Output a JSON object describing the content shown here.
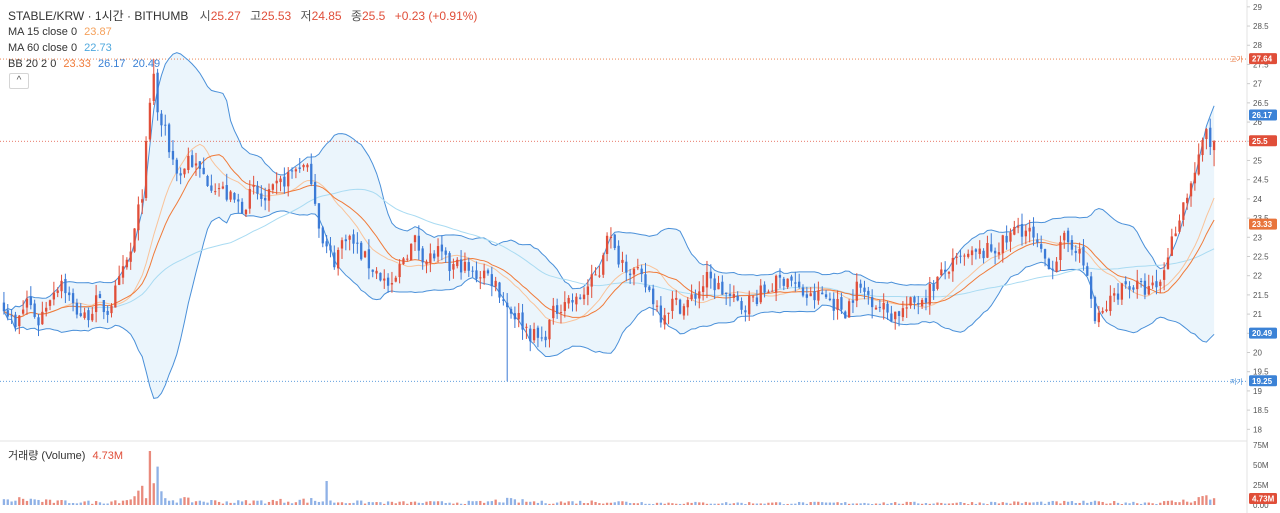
{
  "header": {
    "symbol": "STABLE/KRW · 1시간 · BITHUMB",
    "open_label": "시",
    "open": "25.27",
    "high_label": "고",
    "high": "25.53",
    "low_label": "저",
    "low": "24.85",
    "close_label": "종",
    "close": "25.5",
    "change": "+0.23 (+0.91%)"
  },
  "indicators": {
    "ma15": {
      "label": "MA 15 close 0",
      "value": "23.87",
      "color": "#f5a05a"
    },
    "ma60": {
      "label": "MA 60 close 0",
      "value": "22.73",
      "color": "#7ec8ea"
    },
    "bb": {
      "label": "BB 20 2 0",
      "basis": "23.33",
      "upper": "26.17",
      "lower": "20.49",
      "basis_color": "#f07b3a",
      "band_color": "#4a90d9"
    }
  },
  "volume": {
    "label": "거래량 (Volume)",
    "value": "4.73M"
  },
  "collapse_icon": "^",
  "chart_data": {
    "type": "candlestick",
    "title": "STABLE/KRW · 1시간 · BITHUMB",
    "ylim": [
      17.8,
      29.1
    ],
    "y_ticks": [
      "29",
      "28.5",
      "28",
      "27.5",
      "27",
      "26.5",
      "26",
      "25.5",
      "25",
      "24.5",
      "24",
      "23.5",
      "23",
      "22.5",
      "22",
      "21.5",
      "21",
      "20.5",
      "20",
      "19.5",
      "19",
      "18.5",
      "18"
    ],
    "volume_ticks": [
      "75M",
      "50M",
      "25M",
      "0.00"
    ],
    "volume_ylim": [
      0,
      75
    ],
    "levels": {
      "high": {
        "label": "고가",
        "value": 27.64,
        "price_label": "27.64"
      },
      "low": {
        "label": "저가",
        "value": 19.25,
        "price_label": "19.25"
      },
      "last": {
        "value": 25.5,
        "price_label": "25.5"
      }
    },
    "badges": [
      {
        "text": "26.17",
        "value": 26.17,
        "color": "#3b82d6"
      },
      {
        "text": "23.33",
        "value": 23.33,
        "color": "#e8743b"
      },
      {
        "text": "20.49",
        "value": 20.49,
        "color": "#3b82d6"
      },
      {
        "text": "4.73M",
        "value": 4.73,
        "color": "#e04e39",
        "pane": "volume"
      }
    ],
    "anchors": [
      [
        0,
        21.3
      ],
      [
        3,
        20.6
      ],
      [
        6,
        21.4
      ],
      [
        9,
        20.8
      ],
      [
        12,
        21.5
      ],
      [
        15,
        21.9
      ],
      [
        18,
        21.2
      ],
      [
        21,
        20.9
      ],
      [
        24,
        21.3
      ],
      [
        27,
        21.1
      ],
      [
        30,
        21.8
      ],
      [
        33,
        22.6
      ],
      [
        36,
        24.2
      ],
      [
        38,
        26.4
      ],
      [
        39,
        27.3
      ],
      [
        40,
        26.2
      ],
      [
        42,
        25.7
      ],
      [
        44,
        25.0
      ],
      [
        46,
        24.6
      ],
      [
        48,
        25.1
      ],
      [
        50,
        24.8
      ],
      [
        53,
        24.5
      ],
      [
        56,
        24.3
      ],
      [
        59,
        24.0
      ],
      [
        62,
        23.8
      ],
      [
        65,
        24.2
      ],
      [
        68,
        23.9
      ],
      [
        71,
        24.3
      ],
      [
        74,
        24.6
      ],
      [
        77,
        24.9
      ],
      [
        80,
        24.6
      ],
      [
        83,
        22.8
      ],
      [
        86,
        22.4
      ],
      [
        89,
        23.1
      ],
      [
        92,
        22.7
      ],
      [
        95,
        22.3
      ],
      [
        98,
        22.0
      ],
      [
        101,
        21.6
      ],
      [
        104,
        22.5
      ],
      [
        107,
        22.9
      ],
      [
        110,
        22.4
      ],
      [
        113,
        22.6
      ],
      [
        116,
        22.2
      ],
      [
        119,
        22.3
      ],
      [
        122,
        22.0
      ],
      [
        125,
        22.1
      ],
      [
        128,
        21.8
      ],
      [
        131,
        21.2
      ],
      [
        134,
        20.9
      ],
      [
        137,
        20.5
      ],
      [
        140,
        20.3
      ],
      [
        143,
        21.0
      ],
      [
        146,
        21.4
      ],
      [
        149,
        21.3
      ],
      [
        152,
        21.7
      ],
      [
        155,
        22.1
      ],
      [
        157,
        23.2
      ],
      [
        159,
        22.6
      ],
      [
        162,
        22.3
      ],
      [
        165,
        22.0
      ],
      [
        168,
        21.6
      ],
      [
        171,
        21.0
      ],
      [
        174,
        21.3
      ],
      [
        177,
        21.2
      ],
      [
        180,
        21.5
      ],
      [
        183,
        21.9
      ],
      [
        186,
        21.7
      ],
      [
        189,
        21.4
      ],
      [
        192,
        21.2
      ],
      [
        195,
        21.4
      ],
      [
        198,
        21.6
      ],
      [
        201,
        21.8
      ],
      [
        204,
        22.0
      ],
      [
        207,
        21.6
      ],
      [
        210,
        21.4
      ],
      [
        213,
        21.5
      ],
      [
        216,
        21.3
      ],
      [
        219,
        21.1
      ],
      [
        222,
        21.7
      ],
      [
        225,
        21.5
      ],
      [
        228,
        21.2
      ],
      [
        231,
        21.0
      ],
      [
        234,
        21.1
      ],
      [
        237,
        21.3
      ],
      [
        240,
        21.5
      ],
      [
        243,
        21.9
      ],
      [
        246,
        22.2
      ],
      [
        249,
        22.4
      ],
      [
        252,
        22.5
      ],
      [
        255,
        22.6
      ],
      [
        258,
        22.7
      ],
      [
        261,
        22.9
      ],
      [
        264,
        23.3
      ],
      [
        267,
        23.1
      ],
      [
        270,
        22.5
      ],
      [
        273,
        22.3
      ],
      [
        276,
        22.9
      ],
      [
        279,
        22.8
      ],
      [
        282,
        22.0
      ],
      [
        284,
        20.8
      ],
      [
        286,
        21.0
      ],
      [
        289,
        21.5
      ],
      [
        292,
        21.8
      ],
      [
        295,
        21.7
      ],
      [
        298,
        21.6
      ],
      [
        301,
        21.8
      ],
      [
        303,
        22.6
      ],
      [
        306,
        23.6
      ],
      [
        309,
        24.4
      ],
      [
        311,
        25.0
      ],
      [
        313,
        25.8
      ],
      [
        314,
        25.4
      ],
      [
        315,
        25.5
      ]
    ],
    "volume_profile": [
      [
        0,
        1.2
      ],
      [
        5,
        1.8
      ],
      [
        12,
        1.0
      ],
      [
        25,
        0.8
      ],
      [
        32,
        1.6
      ],
      [
        36,
        4.0
      ],
      [
        38,
        6.5
      ],
      [
        40,
        3.0
      ],
      [
        44,
        1.7
      ],
      [
        50,
        1.2
      ],
      [
        60,
        0.9
      ],
      [
        80,
        1.4
      ],
      [
        84,
        1.0
      ],
      [
        100,
        0.7
      ],
      [
        125,
        0.8
      ],
      [
        130,
        1.4
      ],
      [
        140,
        0.8
      ],
      [
        157,
        1.0
      ],
      [
        170,
        0.6
      ],
      [
        200,
        0.6
      ],
      [
        240,
        0.6
      ],
      [
        282,
        0.8
      ],
      [
        300,
        0.7
      ],
      [
        308,
        1.2
      ],
      [
        312,
        2.3
      ],
      [
        315,
        1.8
      ]
    ]
  }
}
